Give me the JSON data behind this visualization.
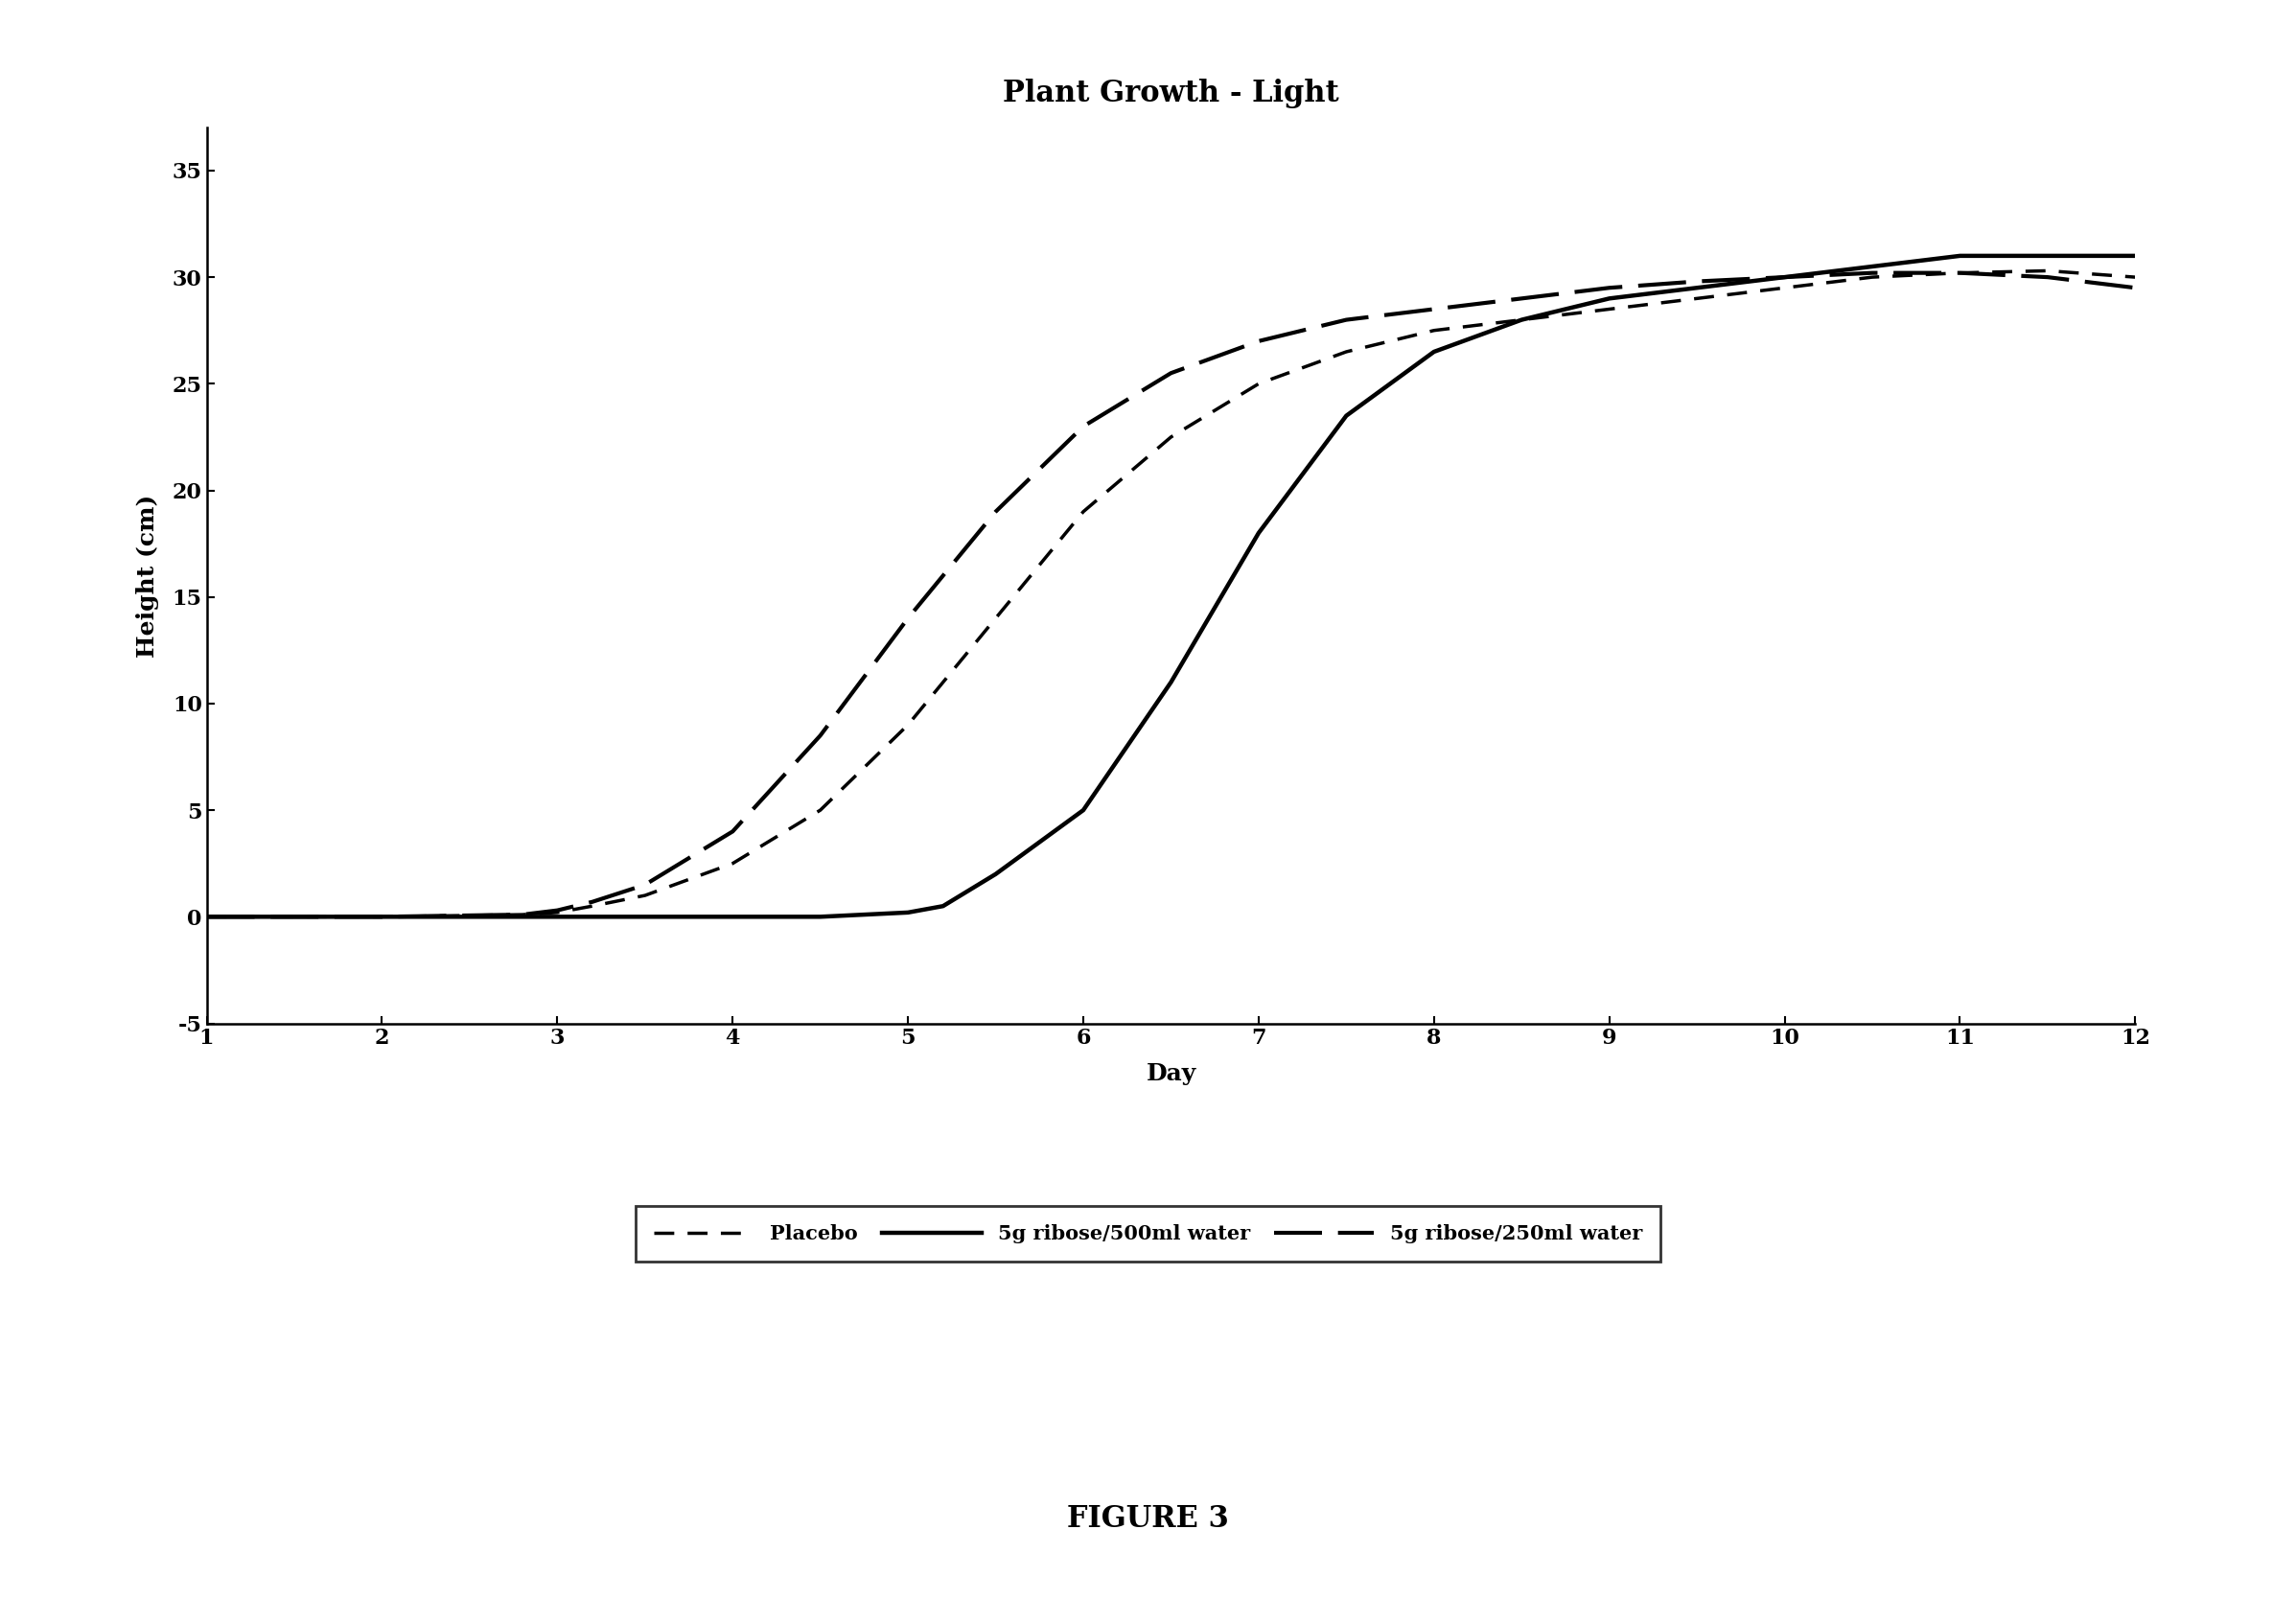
{
  "title": "Plant Growth - Light",
  "xlabel": "Day",
  "ylabel": "Height (cm)",
  "xlim": [
    1,
    12
  ],
  "ylim": [
    -5,
    37
  ],
  "xticks": [
    1,
    2,
    3,
    4,
    5,
    6,
    7,
    8,
    9,
    10,
    11,
    12
  ],
  "yticks": [
    -5,
    0,
    5,
    10,
    15,
    20,
    25,
    30,
    35
  ],
  "figure_caption": "FIGURE 3",
  "series": [
    {
      "label": "Placebo",
      "color": "#000000",
      "linewidth": 2.5,
      "dash_pattern": [
        6,
        4
      ],
      "x": [
        1,
        2,
        2.8,
        3.0,
        3.2,
        3.5,
        4.0,
        4.5,
        5.0,
        5.5,
        6.0,
        6.5,
        7.0,
        7.5,
        8.0,
        8.5,
        9.0,
        9.5,
        10.0,
        10.5,
        11.0,
        11.5,
        12.0
      ],
      "y": [
        0,
        0,
        0.1,
        0.2,
        0.5,
        1.0,
        2.5,
        5.0,
        9.0,
        14.0,
        19.0,
        22.5,
        25.0,
        26.5,
        27.5,
        28.0,
        28.5,
        29.0,
        29.5,
        30.0,
        30.2,
        30.3,
        30.0
      ]
    },
    {
      "label": "5g ribose/500ml water",
      "color": "#000000",
      "linewidth": 3.2,
      "x": [
        1,
        2,
        3,
        3.5,
        4,
        4.5,
        5.0,
        5.2,
        5.5,
        6.0,
        6.5,
        7.0,
        7.5,
        8.0,
        8.5,
        9.0,
        9.5,
        10.0,
        10.5,
        11.0,
        11.5,
        12.0
      ],
      "y": [
        0,
        0,
        0,
        0,
        0,
        0,
        0.2,
        0.5,
        2.0,
        5.0,
        11.0,
        18.0,
        23.5,
        26.5,
        28.0,
        29.0,
        29.5,
        30.0,
        30.5,
        31.0,
        31.0,
        31.0
      ]
    },
    {
      "label": "5g ribose/250ml water",
      "color": "#000000",
      "linewidth": 3.0,
      "dash_pattern": [
        12,
        4
      ],
      "x": [
        1,
        2,
        2.8,
        3.0,
        3.2,
        3.5,
        4.0,
        4.5,
        5.0,
        5.5,
        6.0,
        6.5,
        7.0,
        7.5,
        8.0,
        8.5,
        9.0,
        9.5,
        10.0,
        10.5,
        11.0,
        11.5,
        12.0
      ],
      "y": [
        0,
        0,
        0.1,
        0.3,
        0.7,
        1.5,
        4.0,
        8.5,
        14.0,
        19.0,
        23.0,
        25.5,
        27.0,
        28.0,
        28.5,
        29.0,
        29.5,
        29.8,
        30.0,
        30.2,
        30.2,
        30.0,
        29.5
      ]
    }
  ],
  "background_color": "#ffffff",
  "title_fontsize": 22,
  "axis_label_fontsize": 18,
  "tick_fontsize": 16,
  "legend_fontsize": 15,
  "caption_fontsize": 22
}
